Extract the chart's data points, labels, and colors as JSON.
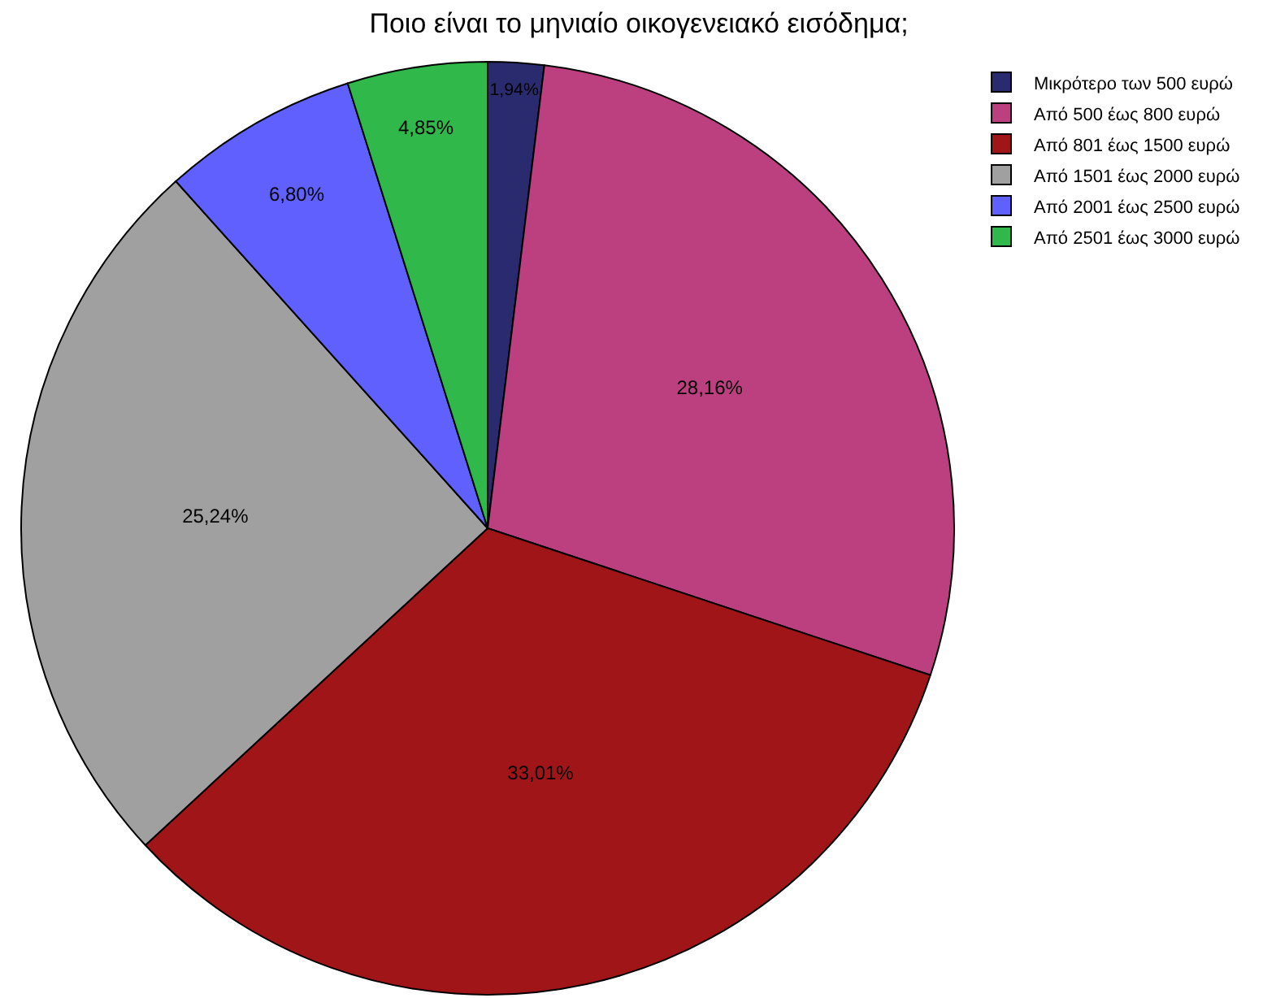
{
  "chart_data": {
    "type": "pie",
    "title": "Ποιο είναι το μηνιαίο οικογενειακό εισόδημα;",
    "categories": [
      "Μικρότερο των 500 ευρώ",
      "Από 500 έως 800 ευρώ",
      "Από 801 έως 1500 ευρώ",
      "Από 1501 έως 2000 ευρώ",
      "Από 2001 έως 2500 ευρώ",
      "Από 2501 έως 3000 ευρώ"
    ],
    "values": [
      1.94,
      28.16,
      33.01,
      25.24,
      6.8,
      4.85
    ],
    "value_labels": [
      "1,94%",
      "28,16%",
      "33,01%",
      "25,24%",
      "6,80%",
      "4,85%"
    ],
    "colors": [
      "#2a2a6e",
      "#bc4080",
      "#a01518",
      "#a0a0a0",
      "#6060ff",
      "#30b84a"
    ],
    "legend": "top right"
  }
}
